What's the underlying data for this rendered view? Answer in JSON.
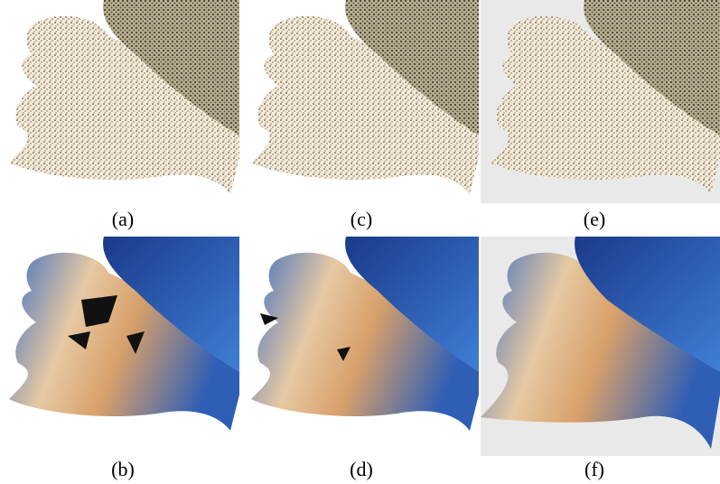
{
  "panels": [
    {
      "caption": "(a)"
    },
    {
      "caption": "(c)"
    },
    {
      "caption": "(e)"
    },
    {
      "caption": "(b)"
    },
    {
      "caption": "(d)"
    },
    {
      "caption": "(f)"
    }
  ]
}
